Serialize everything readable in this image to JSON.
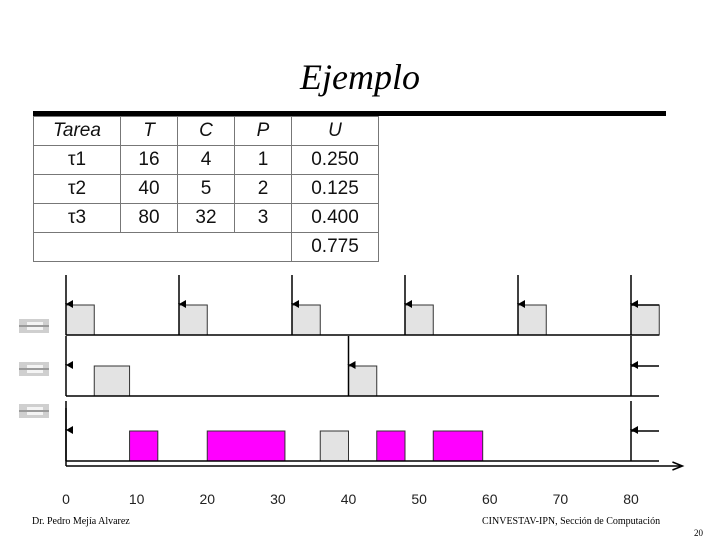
{
  "slide": {
    "title": "Ejemplo",
    "footer_left": "Dr. Pedro Mejía Alvarez",
    "footer_right": "CINVESTAV-IPN, Sección de Computación",
    "page_number": "20"
  },
  "table": {
    "headers": [
      "Tarea",
      "T",
      "C",
      "P",
      "U"
    ],
    "rows": [
      [
        "τ1",
        "16",
        "4",
        "1",
        "0.250"
      ],
      [
        "τ2",
        "40",
        "5",
        "2",
        "0.125"
      ],
      [
        "τ3",
        "80",
        "32",
        "3",
        "0.400"
      ]
    ],
    "total": "0.775"
  },
  "chart_data": {
    "type": "timeline",
    "x": [
      0,
      10,
      20,
      30,
      40,
      50,
      60,
      70,
      80
    ],
    "tick_labels": [
      "0",
      "10",
      "20",
      "30",
      "40",
      "50",
      "60",
      "70",
      "80"
    ],
    "xlim": [
      0,
      87
    ],
    "tasks": [
      {
        "releases": [
          0,
          16,
          32,
          48,
          64,
          80
        ],
        "executions": [
          [
            0,
            4
          ],
          [
            16,
            20
          ],
          [
            32,
            36
          ],
          [
            48,
            52
          ],
          [
            64,
            68
          ],
          [
            80,
            84
          ]
        ],
        "color": "#e3e3e3"
      },
      {
        "releases": [
          0,
          40,
          80
        ],
        "executions": [
          [
            4,
            9
          ],
          [
            40,
            44
          ]
        ],
        "color": "#e3e3e3"
      },
      {
        "releases": [
          0,
          80
        ],
        "executions": [
          [
            9,
            13
          ],
          [
            20,
            31
          ],
          [
            36,
            40
          ],
          [
            44,
            48
          ],
          [
            52,
            59
          ]
        ],
        "colors": [
          "#ff00ff",
          "#ff00ff",
          "#e3e3e3",
          "#ff00ff",
          "#ff00ff"
        ]
      }
    ]
  }
}
